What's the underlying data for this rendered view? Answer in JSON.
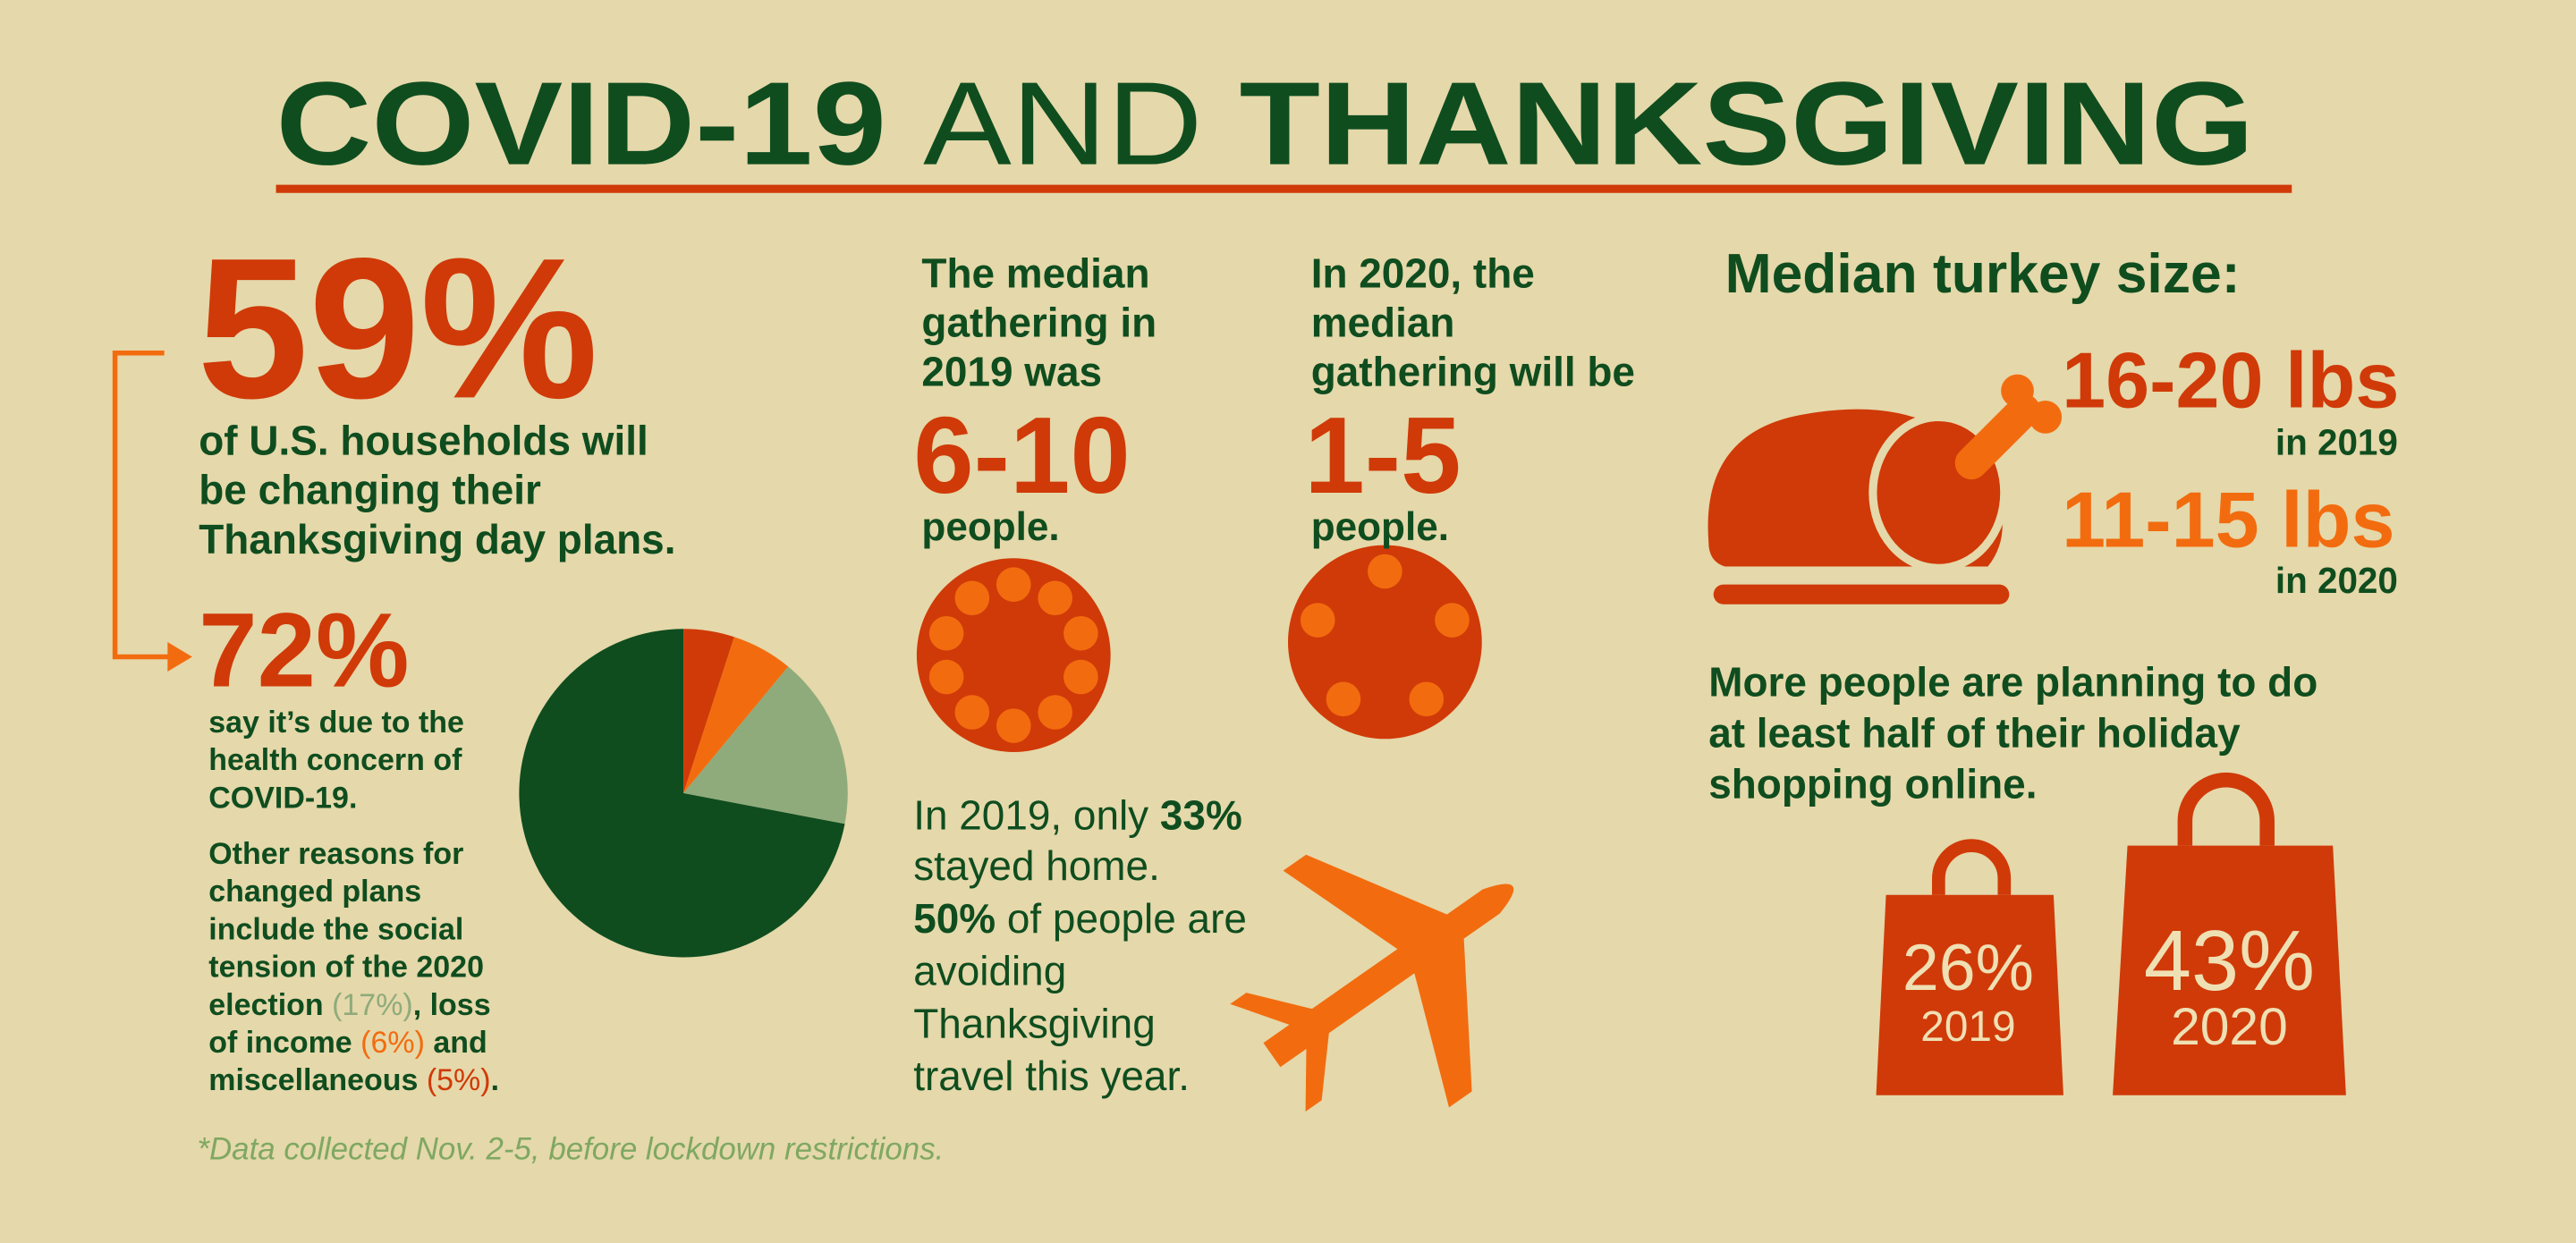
{
  "title": [
    "COVID-19",
    "AND",
    "THANKSGIVING"
  ],
  "plans": {
    "stat": "59%",
    "lines": [
      "of U.S. households will",
      "be changing their",
      "Thanksgiving day plans."
    ]
  },
  "health": {
    "lines": [
      "say it’s due to the",
      "health concern of",
      "COVID-19."
    ]
  },
  "reasons": {
    "lines": [
      "Other reasons for",
      "changed plans",
      "include the social",
      "tension of the 2020"
    ],
    "tail": [
      "election ",
      ", loss",
      "of income ",
      " and",
      "miscellaneous ",
      "."
    ]
  },
  "chart_data": {
    "type": "pie",
    "values": [
      72,
      17,
      6,
      5
    ],
    "value_labels": [
      "72%",
      "(17%)",
      "(6%)",
      "(5%)"
    ],
    "colors": [
      "#0f4d1f",
      "#8fab7b",
      "#f26c0f",
      "#d03a08"
    ]
  },
  "gathering_2019": {
    "lines": [
      "The median",
      "gathering in",
      "2019 was"
    ],
    "range": "6-10",
    "unit": "people."
  },
  "gathering_2020": {
    "lines": [
      "In 2020, the",
      "median",
      "gathering will be"
    ],
    "range": "1-5",
    "unit": "people."
  },
  "travel": {
    "line1": [
      "In 2019, only ",
      "33%"
    ],
    "line2": "stayed home.",
    "line3": [
      "50%",
      " of people are"
    ],
    "lines": [
      "avoiding",
      "Thanksgiving",
      "travel this year."
    ]
  },
  "turkey": {
    "heading": "Median turkey size:",
    "size_2019": "16-20 lbs",
    "label_2019": "in 2019",
    "size_2020": "11-15 lbs",
    "label_2020": "in 2020"
  },
  "shopping": {
    "lines": [
      "More people are planning to do",
      "at least half of their holiday",
      "shopping online."
    ],
    "bags": [
      {
        "value": "26%",
        "year": "2019"
      },
      {
        "value": "43%",
        "year": "2020"
      }
    ]
  },
  "footnote": "*Data collected Nov. 2-5, before lockdown restrictions."
}
